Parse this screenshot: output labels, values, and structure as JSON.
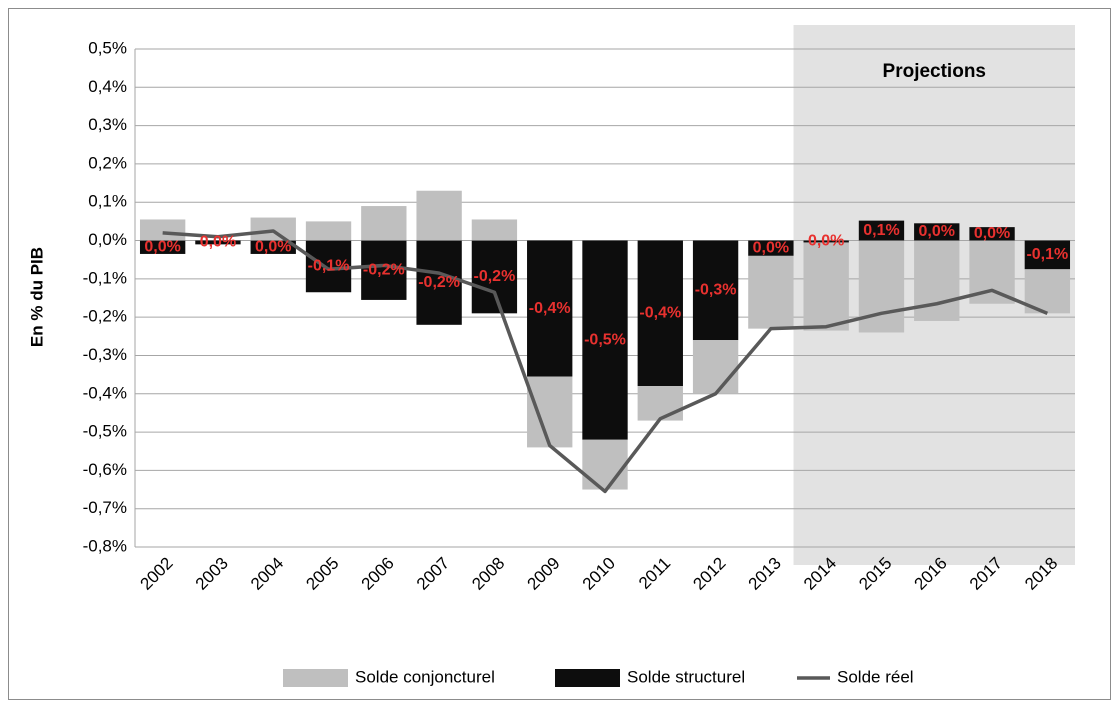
{
  "chart_data": {
    "type": "bar",
    "y_label": "En % du PIB",
    "categories": [
      "2002",
      "2003",
      "2004",
      "2005",
      "2006",
      "2007",
      "2008",
      "2009",
      "2010",
      "2011",
      "2012",
      "2013",
      "2014",
      "2015",
      "2016",
      "2017",
      "2018"
    ],
    "series": [
      {
        "name": "Solde conjoncturel",
        "type": "bar",
        "color": "#bfbfbf",
        "values": [
          0.055,
          0.0,
          0.06,
          0.05,
          0.09,
          0.13,
          0.055,
          -0.185,
          -0.13,
          -0.09,
          -0.14,
          -0.19,
          -0.23,
          -0.24,
          -0.21,
          -0.165,
          -0.115
        ]
      },
      {
        "name": "Solde structurel",
        "type": "bar",
        "color": "#0d0d0d",
        "values": [
          -0.035,
          -0.01,
          -0.035,
          -0.135,
          -0.155,
          -0.22,
          -0.19,
          -0.355,
          -0.52,
          -0.38,
          -0.26,
          -0.04,
          -0.005,
          0.052,
          0.045,
          0.035,
          -0.075
        ],
        "value_labels": [
          "0,0%",
          "0,0%",
          "0,0%",
          "-0,1%",
          "-0,2%",
          "-0,2%",
          "-0,2%",
          "-0,4%",
          "-0,5%",
          "-0,4%",
          "-0,3%",
          "0,0%",
          "0,0%",
          "0,1%",
          "0,0%",
          "0,0%",
          "-0,1%"
        ],
        "label_color": "#e8312f"
      },
      {
        "name": "Solde réel",
        "type": "line",
        "color": "#595959",
        "values": [
          0.02,
          0.01,
          0.025,
          -0.075,
          -0.065,
          -0.085,
          -0.135,
          -0.535,
          -0.655,
          -0.465,
          -0.4,
          -0.23,
          -0.225,
          -0.19,
          -0.165,
          -0.13,
          -0.19
        ]
      }
    ],
    "ylim": [
      -0.8,
      0.5
    ],
    "yticks": [
      {
        "value": -0.8,
        "label": "-0,8%"
      },
      {
        "value": -0.7,
        "label": "-0,7%"
      },
      {
        "value": -0.6,
        "label": "-0,6%"
      },
      {
        "value": -0.5,
        "label": "-0,5%"
      },
      {
        "value": -0.4,
        "label": "-0,4%"
      },
      {
        "value": -0.3,
        "label": "-0,3%"
      },
      {
        "value": -0.2,
        "label": "-0,2%"
      },
      {
        "value": -0.1,
        "label": "-0,1%"
      },
      {
        "value": 0,
        "label": "0,0%"
      },
      {
        "value": 0.1,
        "label": "0,1%"
      },
      {
        "value": 0.2,
        "label": "0,2%"
      },
      {
        "value": 0.3,
        "label": "0,3%"
      },
      {
        "value": 0.4,
        "label": "0,4%"
      },
      {
        "value": 0.5,
        "label": "0,5%"
      }
    ],
    "grid": true,
    "legend": "bottom",
    "shaded_region": {
      "text": "Projections",
      "from": "2014",
      "to": "2018",
      "color": "#e2e2e2"
    }
  }
}
